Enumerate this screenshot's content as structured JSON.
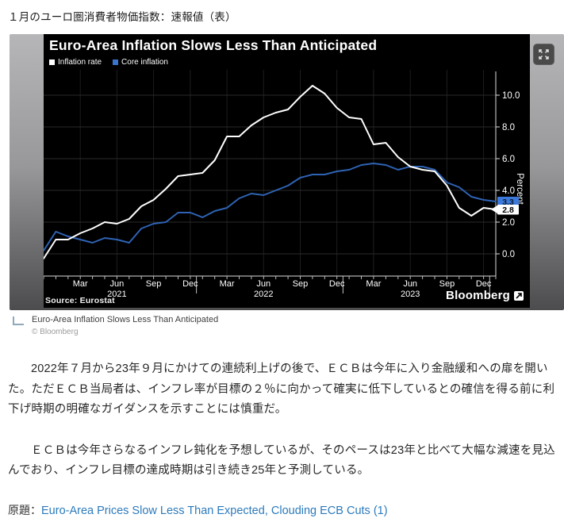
{
  "page": {
    "title": "１月のユーロ圏消費者物価指数：速報値（表）"
  },
  "figure": {
    "chart": {
      "title": "Euro-Area Inflation Slows Less Than Anticipated",
      "source": "Source: Eurostat",
      "brand": "Bloomberg"
    },
    "expand_icon": "expand-arrows"
  },
  "chart_data": {
    "type": "line",
    "title": "Euro-Area Inflation Slows Less Than Anticipated",
    "ylabel": "Percent",
    "ylim": [
      -1.4,
      10.9
    ],
    "grid": true,
    "legend_position": "top-left",
    "x_start": "2020-12",
    "x_interval": "1 month",
    "n_points": 38,
    "series": [
      {
        "name": "Inflation rate",
        "color": "#ffffff",
        "swatch": "#ffffff",
        "values": [
          -0.3,
          0.9,
          0.9,
          1.3,
          1.6,
          2.0,
          1.9,
          2.2,
          3.0,
          3.4,
          4.1,
          4.9,
          5.0,
          5.1,
          5.9,
          7.4,
          7.4,
          8.1,
          8.6,
          8.9,
          9.1,
          9.9,
          10.6,
          10.1,
          9.2,
          8.6,
          8.5,
          6.9,
          7.0,
          6.1,
          5.5,
          5.3,
          5.2,
          4.3,
          2.9,
          2.4,
          2.9,
          2.8
        ]
      },
      {
        "name": "Core inflation",
        "color": "#2e63b4",
        "swatch": "#3a74cc",
        "values": [
          0.2,
          1.4,
          1.1,
          0.9,
          0.7,
          1.0,
          0.9,
          0.7,
          1.6,
          1.9,
          2.0,
          2.6,
          2.6,
          2.3,
          2.7,
          2.9,
          3.5,
          3.8,
          3.7,
          4.0,
          4.3,
          4.8,
          5.0,
          5.0,
          5.2,
          5.3,
          5.6,
          5.7,
          5.6,
          5.3,
          5.5,
          5.5,
          5.3,
          4.5,
          4.2,
          3.6,
          3.4,
          3.3
        ]
      }
    ],
    "y_ticks": [
      "0.0",
      "2.0",
      "4.0",
      "6.0",
      "8.0",
      "10.0"
    ],
    "x_ticks": [
      {
        "i": 3,
        "label": "Mar"
      },
      {
        "i": 6,
        "label": "Jun"
      },
      {
        "i": 9,
        "label": "Sep"
      },
      {
        "i": 12,
        "label": "Dec"
      },
      {
        "i": 15,
        "label": "Mar"
      },
      {
        "i": 18,
        "label": "Jun"
      },
      {
        "i": 21,
        "label": "Sep"
      },
      {
        "i": 24,
        "label": "Dec"
      },
      {
        "i": 27,
        "label": "Mar"
      },
      {
        "i": 30,
        "label": "Jun"
      },
      {
        "i": 33,
        "label": "Sep"
      },
      {
        "i": 36,
        "label": "Dec"
      }
    ],
    "year_ticks": [
      {
        "i": 6,
        "label": "2021"
      },
      {
        "i": 18,
        "label": "2022"
      },
      {
        "i": 30,
        "label": "2023"
      }
    ],
    "year_separators": [
      12.5,
      24.5,
      36.5
    ],
    "end_labels": [
      {
        "value": "3.3",
        "bg": "#3c79da",
        "fg": "#081c38"
      },
      {
        "value": "2.8",
        "bg": "#ffffff",
        "fg": "#000000"
      }
    ]
  },
  "caption": {
    "text": "Euro-Area Inflation Slows Less Than Anticipated",
    "credit": "© Bloomberg"
  },
  "article": {
    "paragraphs": [
      "2022年７月から23年９月にかけての連続利上げの後で、ＥＣＢは今年に入り金融緩和への扉を開いた。ただＥＣＢ当局者は、インフレ率が目標の２％に向かって確実に低下しているとの確信を得る前に利下げ時期の明確なガイダンスを示すことには慎重だ。",
      "ＥＣＢは今年さらなるインフレ鈍化を予想しているが、そのペースは23年と比べて大幅な減速を見込んでおり、インフレ目標の達成時期は引き続き25年と予測している。"
    ]
  },
  "footer": {
    "label": "原題：",
    "link": "Euro-Area Prices Slow Less Than Expected, Clouding ECB Cuts (1)"
  }
}
